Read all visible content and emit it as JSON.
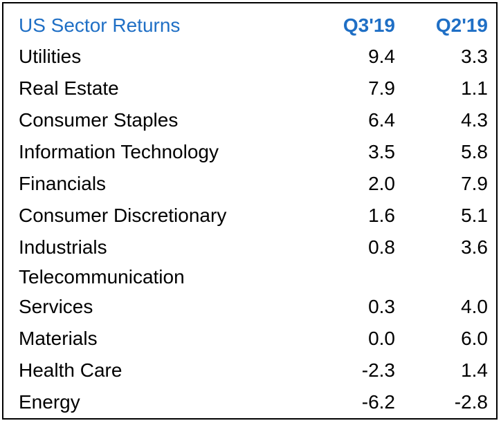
{
  "table": {
    "title": "US Sector Returns",
    "col1": "Q3'19",
    "col2": "Q2'19",
    "accent_color": "#1f6fc5",
    "rows": [
      {
        "label": "Utilities",
        "q3": "9.4",
        "q2": "3.3"
      },
      {
        "label": "Real Estate",
        "q3": "7.9",
        "q2": "1.1"
      },
      {
        "label": "Consumer Staples",
        "q3": "6.4",
        "q2": "4.3"
      },
      {
        "label": "Information Technology",
        "q3": "3.5",
        "q2": "5.8"
      },
      {
        "label": "Financials",
        "q3": "2.0",
        "q2": "7.9"
      },
      {
        "label": "Consumer Discretionary",
        "q3": "1.6",
        "q2": "5.1"
      },
      {
        "label": "Industrials",
        "q3": "0.8",
        "q2": "3.6"
      },
      {
        "label": "Telecommunication",
        "label2": "Services",
        "q3": "0.3",
        "q2": "4.0"
      },
      {
        "label": "Materials",
        "q3": "0.0",
        "q2": "6.0"
      },
      {
        "label": "Health Care",
        "q3": "-2.3",
        "q2": "1.4"
      },
      {
        "label": "Energy",
        "q3": "-6.2",
        "q2": "-2.8"
      }
    ]
  }
}
